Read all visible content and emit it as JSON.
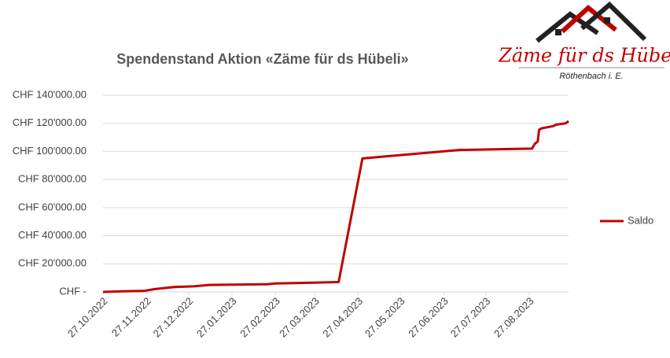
{
  "chart_data": {
    "type": "line",
    "title": "Spendenstand Aktion «Zäme für ds Hübeli»",
    "logo_text": "Zäme für ds Hübeli",
    "logo_subtext": "Röthenbach i. E.",
    "x": [
      "27.10.2022",
      "12.11.2022",
      "25.11.2022",
      "03.12.2022",
      "17.12.2022",
      "31.12.2022",
      "11.01.2023",
      "21.02.2023",
      "27.02.2023",
      "13.04.2023",
      "30.04.2023",
      "08.07.2023",
      "29.08.2023",
      "31.08.2023",
      "02.09.2023",
      "03.09.2023",
      "05.09.2023",
      "13.09.2023",
      "15.09.2023",
      "22.09.2023",
      "24.09.2023"
    ],
    "series": [
      {
        "name": "Saldo",
        "color": "#c00000",
        "values": [
          0,
          500,
          700,
          2000,
          3500,
          4000,
          5000,
          5500,
          6000,
          7000,
          95000,
          101000,
          102000,
          105500,
          107000,
          115500,
          116500,
          118000,
          119000,
          120000,
          121500
        ]
      }
    ],
    "xlim": [
      "27.10.2022",
      "24.09.2023"
    ],
    "xticks": [
      "27.10.2022",
      "27.11.2022",
      "27.12.2022",
      "27.01.2023",
      "27.02.2023",
      "27.03.2023",
      "27.04.2023",
      "27.05.2023",
      "27.06.2023",
      "27.07.2023",
      "27.08.2023"
    ],
    "ylim": [
      0,
      140000
    ],
    "yticks": [
      {
        "value": 0,
        "label": "CHF -"
      },
      {
        "value": 20000,
        "label": "CHF 20'000.00"
      },
      {
        "value": 40000,
        "label": "CHF 40'000.00"
      },
      {
        "value": 60000,
        "label": "CHF 60'000.00"
      },
      {
        "value": 80000,
        "label": "CHF 80'000.00"
      },
      {
        "value": 100000,
        "label": "CHF 100'000.00"
      },
      {
        "value": 120000,
        "label": "CHF 120'000.00"
      },
      {
        "value": 140000,
        "label": "CHF 140'000.00"
      }
    ],
    "grid": true,
    "legend": "right"
  }
}
